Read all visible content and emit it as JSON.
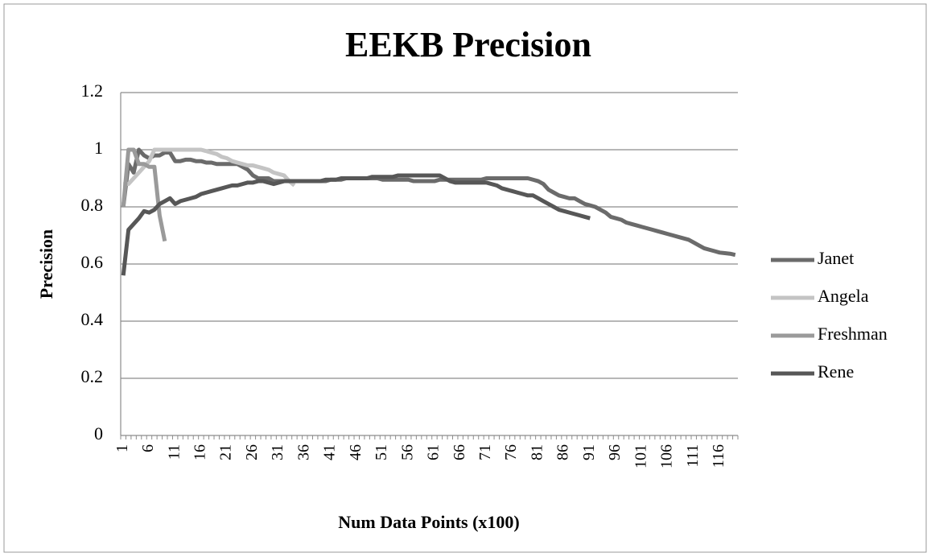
{
  "chart_data": {
    "type": "line",
    "title": "EEKB Precision",
    "xlabel": "Num Data Points (x100)",
    "ylabel": "Precision",
    "categories": [
      1,
      null,
      null,
      null,
      null,
      6,
      null,
      null,
      null,
      null,
      11,
      null,
      null,
      null,
      null,
      16,
      null,
      null,
      null,
      null,
      21,
      null,
      null,
      null,
      null,
      26,
      null,
      null,
      null,
      null,
      31,
      null,
      null,
      null,
      null,
      36,
      null,
      null,
      null,
      null,
      41,
      null,
      null,
      null,
      null,
      46,
      null,
      null,
      null,
      null,
      51,
      null,
      null,
      null,
      null,
      56,
      null,
      null,
      null,
      null,
      61,
      null,
      null,
      null,
      null,
      66,
      null,
      null,
      null,
      null,
      71,
      null,
      null,
      null,
      null,
      76,
      null,
      null,
      null,
      null,
      81,
      null,
      null,
      null,
      null,
      86,
      null,
      null,
      null,
      null,
      91,
      null,
      null,
      null,
      null,
      96,
      null,
      null,
      null,
      null,
      101,
      null,
      null,
      null,
      null,
      106,
      null,
      null,
      null,
      null,
      111,
      null,
      null,
      null,
      null,
      116,
      null,
      null,
      null
    ],
    "series": [
      {
        "name": "Janet",
        "color": "#6b6b6b",
        "values": [
          0.8,
          0.95,
          0.92,
          1.0,
          0.98,
          0.97,
          0.98,
          0.98,
          0.99,
          0.99,
          0.96,
          0.96,
          0.965,
          0.965,
          0.96,
          0.96,
          0.955,
          0.955,
          0.95,
          0.95,
          0.95,
          0.95,
          0.95,
          0.94,
          0.93,
          0.91,
          0.9,
          0.9,
          0.9,
          0.89,
          0.89,
          0.89,
          0.89,
          0.89,
          0.89,
          0.89,
          0.89,
          0.89,
          0.89,
          0.89,
          0.895,
          0.895,
          0.895,
          0.9,
          0.9,
          0.9,
          0.9,
          0.9,
          0.9,
          0.9,
          0.895,
          0.895,
          0.895,
          0.895,
          0.895,
          0.895,
          0.89,
          0.89,
          0.89,
          0.89,
          0.89,
          0.895,
          0.895,
          0.895,
          0.895,
          0.895,
          0.895,
          0.895,
          0.895,
          0.895,
          0.9,
          0.9,
          0.9,
          0.9,
          0.9,
          0.9,
          0.9,
          0.9,
          0.9,
          0.895,
          0.89,
          0.88,
          0.86,
          0.85,
          0.84,
          0.835,
          0.83,
          0.83,
          0.82,
          0.81,
          0.805,
          0.8,
          0.79,
          0.78,
          0.765,
          0.76,
          0.755,
          0.745,
          0.74,
          0.735,
          0.73,
          0.725,
          0.72,
          0.715,
          0.71,
          0.705,
          0.7,
          0.695,
          0.69,
          0.685,
          0.675,
          0.665,
          0.655,
          0.65,
          0.645,
          0.64,
          0.638,
          0.636,
          0.632
        ]
      },
      {
        "name": "Angela",
        "color": "#c4c4c4",
        "values": [
          0.88,
          0.88,
          0.9,
          0.92,
          0.94,
          0.96,
          1.0,
          1.0,
          1.0,
          1.0,
          1.0,
          1.0,
          1.0,
          1.0,
          1.0,
          1.0,
          0.995,
          0.99,
          0.985,
          0.975,
          0.97,
          0.96,
          0.955,
          0.95,
          0.945,
          0.945,
          0.94,
          0.935,
          0.93,
          0.92,
          0.915,
          0.91,
          0.89,
          0.875,
          null,
          null,
          null,
          null,
          null,
          null,
          null,
          null,
          null,
          null,
          null,
          null,
          null,
          null,
          null,
          null,
          null,
          null,
          null,
          null,
          null,
          null,
          null,
          null,
          null,
          null,
          null,
          null,
          null,
          null,
          null,
          null,
          null,
          null,
          null,
          null,
          null,
          null,
          null,
          null,
          null,
          null,
          null,
          null,
          null,
          null,
          null,
          null,
          null,
          null,
          null,
          null,
          null,
          null,
          null,
          null,
          null,
          null,
          null,
          null,
          null,
          null,
          null,
          null,
          null,
          null,
          null,
          null,
          null,
          null,
          null,
          null,
          null,
          null,
          null,
          null,
          null,
          null,
          null,
          null,
          null,
          null,
          null,
          null,
          null
        ]
      },
      {
        "name": "Freshman",
        "color": "#9a9a9a",
        "values": [
          0.8,
          1.0,
          1.0,
          0.95,
          0.95,
          0.94,
          0.94,
          0.77,
          0.68,
          null,
          null,
          null,
          null,
          null,
          null,
          null,
          null,
          null,
          null,
          null,
          null,
          null,
          null,
          null,
          null,
          null,
          null,
          null,
          null,
          null,
          null,
          null,
          null,
          null,
          null,
          null,
          null,
          null,
          null,
          null,
          null,
          null,
          null,
          null,
          null,
          null,
          null,
          null,
          null,
          null,
          null,
          null,
          null,
          null,
          null,
          null,
          null,
          null,
          null,
          null,
          null,
          null,
          null,
          null,
          null,
          null,
          null,
          null,
          null,
          null,
          null,
          null,
          null,
          null,
          null,
          null,
          null,
          null,
          null,
          null,
          null,
          null,
          null,
          null,
          null,
          null,
          null,
          null,
          null,
          null,
          null,
          null,
          null,
          null,
          null,
          null,
          null,
          null,
          null,
          null,
          null,
          null,
          null,
          null,
          null,
          null,
          null,
          null,
          null,
          null,
          null,
          null,
          null,
          null,
          null,
          null,
          null,
          null,
          null
        ]
      },
      {
        "name": "Rene",
        "color": "#575757",
        "values": [
          0.56,
          0.72,
          0.74,
          0.76,
          0.785,
          0.78,
          0.79,
          0.81,
          0.82,
          0.83,
          0.81,
          0.82,
          0.825,
          0.83,
          0.835,
          0.845,
          0.85,
          0.855,
          0.86,
          0.865,
          0.87,
          0.875,
          0.875,
          0.88,
          0.885,
          0.885,
          0.89,
          0.89,
          0.885,
          0.88,
          0.885,
          0.89,
          0.89,
          0.89,
          0.89,
          0.89,
          0.89,
          0.89,
          0.89,
          0.895,
          0.895,
          0.895,
          0.9,
          0.9,
          0.9,
          0.9,
          0.9,
          0.9,
          0.905,
          0.905,
          0.905,
          0.905,
          0.905,
          0.91,
          0.91,
          0.91,
          0.91,
          0.91,
          0.91,
          0.91,
          0.91,
          0.91,
          0.9,
          0.89,
          0.885,
          0.885,
          0.885,
          0.885,
          0.885,
          0.885,
          0.885,
          0.88,
          0.875,
          0.865,
          0.86,
          0.855,
          0.85,
          0.845,
          0.84,
          0.84,
          0.83,
          0.82,
          0.81,
          0.8,
          0.79,
          0.785,
          0.78,
          0.775,
          0.77,
          0.765,
          0.76,
          null,
          null,
          null,
          null,
          null,
          null,
          null,
          null,
          null,
          null,
          null,
          null,
          null,
          null,
          null,
          null,
          null,
          null,
          null,
          null,
          null,
          null,
          null,
          null,
          null,
          null,
          null,
          null
        ]
      }
    ],
    "ylim": [
      0,
      1.2
    ],
    "yticks": [
      0,
      0.2,
      0.4,
      0.6,
      0.8,
      1,
      1.2
    ],
    "grid": true,
    "legend": "right"
  }
}
